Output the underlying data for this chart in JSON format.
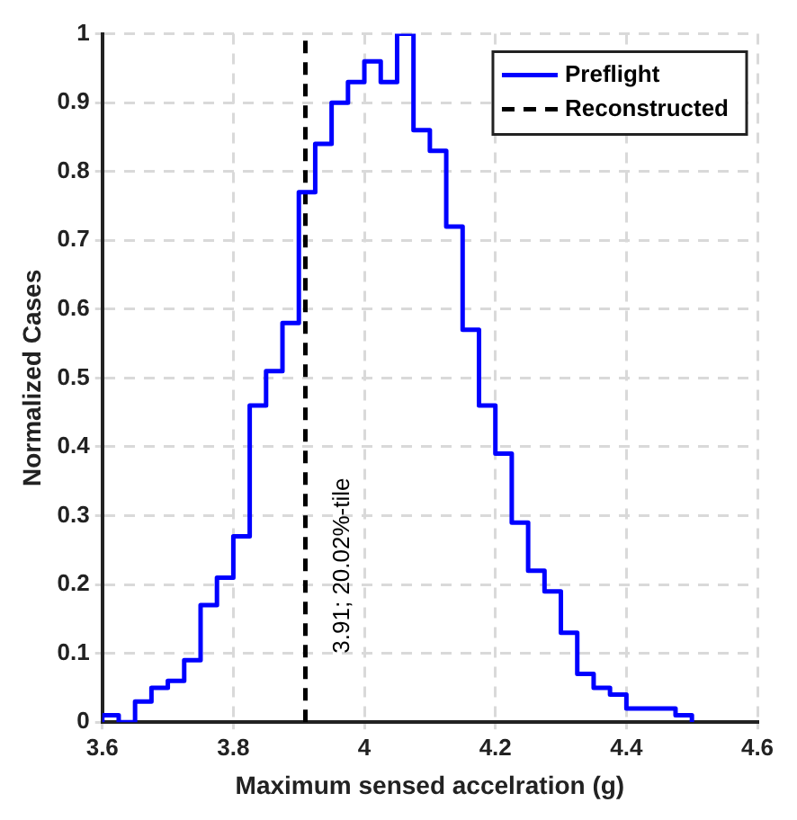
{
  "chart_data": {
    "type": "histogram",
    "xlabel": "Maximum sensed accelration (g)",
    "ylabel": "Normalized Cases",
    "bins": [
      3.6,
      3.625,
      3.65,
      3.675,
      3.7,
      3.725,
      3.75,
      3.775,
      3.8,
      3.825,
      3.85,
      3.875,
      3.9,
      3.925,
      3.95,
      3.975,
      4.0,
      4.025,
      4.05,
      4.075,
      4.1,
      4.125,
      4.15,
      4.175,
      4.2,
      4.225,
      4.25,
      4.275,
      4.3,
      4.325,
      4.35,
      4.375,
      4.4,
      4.425,
      4.45,
      4.475,
      4.5
    ],
    "series": [
      {
        "name": "Preflight",
        "color": "#0000ff",
        "values": [
          0.01,
          0,
          0.03,
          0.05,
          0.06,
          0.09,
          0.17,
          0.21,
          0.27,
          0.46,
          0.51,
          0.58,
          0.77,
          0.84,
          0.9,
          0.93,
          0.96,
          0.93,
          1.0,
          0.86,
          0.83,
          0.72,
          0.57,
          0.46,
          0.39,
          0.29,
          0.22,
          0.19,
          0.13,
          0.07,
          0.05,
          0.04,
          0.02,
          0.02,
          0.02,
          0.01
        ]
      }
    ],
    "ref_lines": [
      {
        "axis": "x",
        "value": 3.91,
        "label": "Reconstructed",
        "color": "#000000",
        "line_style": "dashed"
      }
    ],
    "annotations": [
      {
        "text": "3.91; 20.02%-tile",
        "x": 3.91,
        "y": 0.1
      }
    ],
    "xlim": [
      3.6,
      4.6
    ],
    "xticks": [
      3.6,
      3.8,
      4,
      4.2,
      4.4,
      4.6
    ],
    "ylim": [
      0,
      1
    ],
    "yticks": [
      0,
      0.1,
      0.2,
      0.3,
      0.4,
      0.5,
      0.6,
      0.7,
      0.8,
      0.9,
      1
    ],
    "grid": true,
    "legend": "top right"
  }
}
